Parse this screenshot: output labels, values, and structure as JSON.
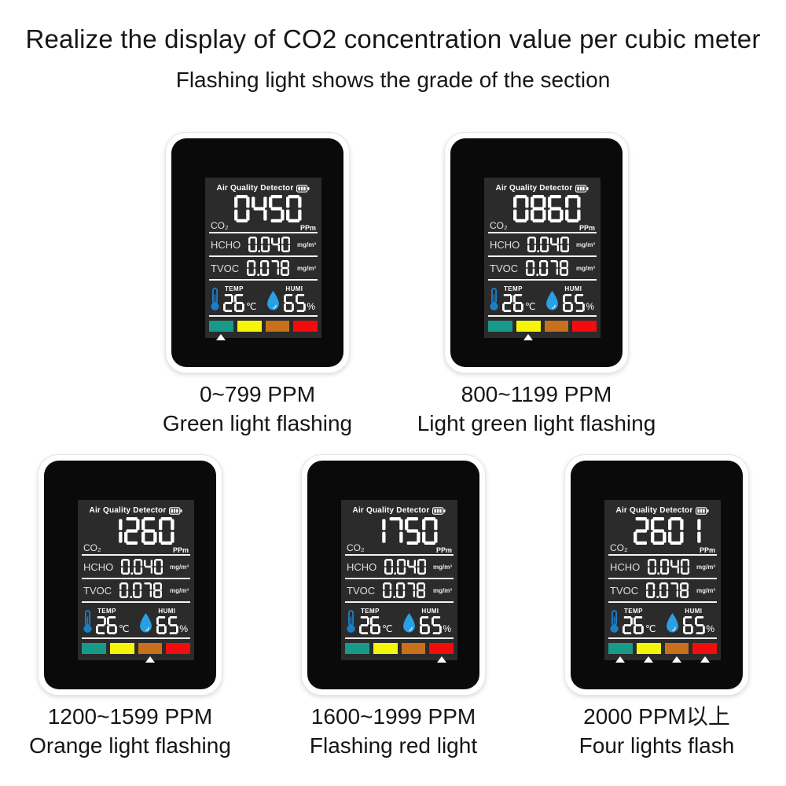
{
  "page": {
    "title": "Realize the display of CO2 concentration value per cubic meter",
    "subtitle": "Flashing light shows the grade of the section"
  },
  "display": {
    "header": "Air Quality Detector",
    "labels": {
      "co2": "CO₂",
      "co2_unit": "PPm",
      "hcho": "HCHO",
      "tvoc": "TVOC",
      "gas_unit": "mg/m³",
      "temp": "TEMP",
      "humi": "HUMI",
      "temp_unit": "℃",
      "humi_unit": "%"
    },
    "icons": {
      "battery": "battery-icon",
      "temperature": "thermometer-icon",
      "humidity": "water-drop-icon",
      "level_indicator": "triangle-up-icon"
    },
    "bar_colors": [
      "#189A8A",
      "#F5F50A",
      "#C8701C",
      "#F20C0C"
    ],
    "colors": {
      "screen_background": "#2B2B2B",
      "device_face": "#0A0A0A",
      "thermometer_blue": "#1C7FC4",
      "droplet_blue": "#2B9FE4"
    }
  },
  "devices": [
    {
      "co2": "0450",
      "hcho": "0.040",
      "tvoc": "0.078",
      "temp": "26",
      "humi": "65",
      "active_bars": [
        0
      ],
      "caption": {
        "range": "0~799 PPM",
        "light": "Green light flashing"
      }
    },
    {
      "co2": "0860",
      "hcho": "0.040",
      "tvoc": "0.078",
      "temp": "26",
      "humi": "65",
      "active_bars": [
        1
      ],
      "caption": {
        "range": "800~1199 PPM",
        "light": "Light green light flashing"
      }
    },
    {
      "co2": "1260",
      "hcho": "0.040",
      "tvoc": "0.078",
      "temp": "26",
      "humi": "65",
      "active_bars": [
        2
      ],
      "caption": {
        "range": "1200~1599 PPM",
        "light": "Orange light flashing"
      }
    },
    {
      "co2": "1750",
      "hcho": "0.040",
      "tvoc": "0.078",
      "temp": "26",
      "humi": "65",
      "active_bars": [
        3
      ],
      "caption": {
        "range": "1600~1999 PPM",
        "light": "Flashing red light"
      }
    },
    {
      "co2": "2601",
      "hcho": "0.040",
      "tvoc": "0.078",
      "temp": "26",
      "humi": "65",
      "active_bars": [
        0,
        1,
        2,
        3
      ],
      "caption": {
        "range": "2000 PPM以上",
        "light": "Four lights flash"
      }
    }
  ]
}
